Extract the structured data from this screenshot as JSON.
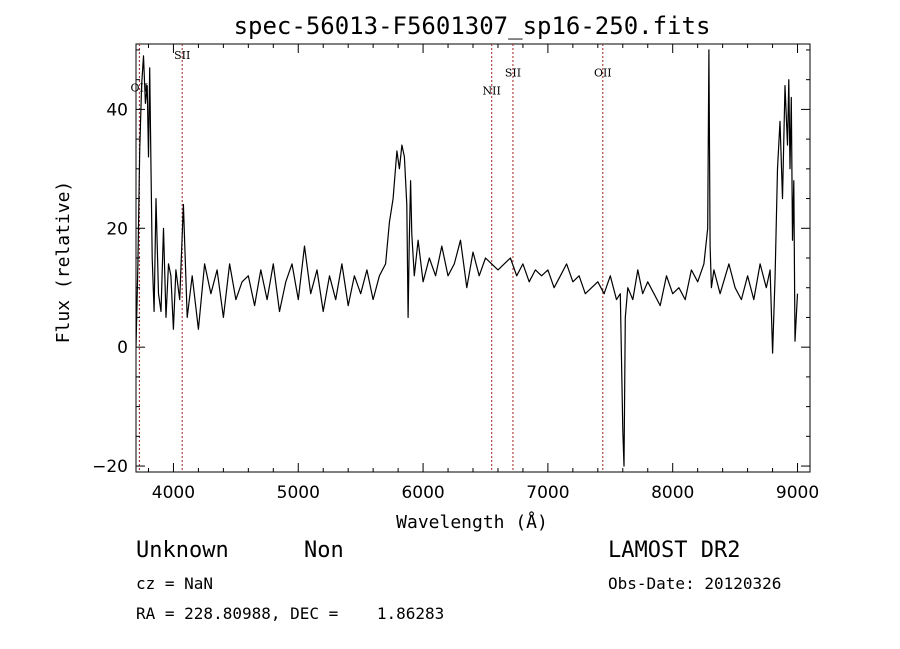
{
  "chart_data": {
    "type": "line",
    "title": "spec-56013-F5601307_sp16-250.fits",
    "xlabel": "Wavelength (Å)",
    "ylabel": "Flux (relative)",
    "xlim": [
      3700,
      9100
    ],
    "ylim": [
      -21,
      51
    ],
    "xticks": [
      4000,
      5000,
      6000,
      7000,
      8000,
      9000
    ],
    "yticks": [
      -20,
      0,
      20,
      40
    ],
    "grid": false,
    "series": [
      {
        "color": "#000000",
        "x": [
          3700,
          3715,
          3730,
          3745,
          3760,
          3775,
          3790,
          3800,
          3810,
          3820,
          3830,
          3845,
          3860,
          3880,
          3900,
          3920,
          3940,
          3960,
          3980,
          4000,
          4020,
          4050,
          4080,
          4110,
          4150,
          4200,
          4250,
          4300,
          4350,
          4400,
          4450,
          4500,
          4550,
          4600,
          4650,
          4700,
          4750,
          4800,
          4850,
          4900,
          4950,
          5000,
          5050,
          5100,
          5150,
          5200,
          5250,
          5300,
          5350,
          5400,
          5450,
          5500,
          5550,
          5600,
          5650,
          5700,
          5730,
          5760,
          5790,
          5810,
          5830,
          5850,
          5870,
          5880,
          5890,
          5900,
          5910,
          5930,
          5960,
          6000,
          6050,
          6100,
          6150,
          6200,
          6250,
          6300,
          6350,
          6400,
          6450,
          6500,
          6550,
          6600,
          6650,
          6700,
          6750,
          6800,
          6850,
          6900,
          6950,
          7000,
          7050,
          7100,
          7150,
          7200,
          7250,
          7300,
          7350,
          7400,
          7450,
          7500,
          7550,
          7580,
          7600,
          7610,
          7620,
          7640,
          7680,
          7720,
          7760,
          7800,
          7850,
          7900,
          7950,
          8000,
          8050,
          8100,
          8150,
          8200,
          8250,
          8280,
          8290,
          8300,
          8310,
          8330,
          8380,
          8450,
          8500,
          8550,
          8600,
          8650,
          8700,
          8750,
          8780,
          8800,
          8820,
          8840,
          8860,
          8880,
          8900,
          8920,
          8930,
          8940,
          8950,
          8960,
          8970,
          8980,
          9000
        ],
        "values": [
          0,
          14,
          33,
          44,
          49,
          41,
          44,
          32,
          47,
          30,
          15,
          6,
          25,
          9,
          6,
          20,
          5,
          14,
          12,
          3,
          13,
          8,
          24,
          5,
          12,
          3,
          14,
          9,
          13,
          5,
          14,
          8,
          11,
          12,
          7,
          13,
          8,
          14,
          6,
          11,
          14,
          8,
          17,
          9,
          13,
          6,
          12,
          8,
          14,
          7,
          12,
          9,
          13,
          8,
          12,
          14,
          21,
          25,
          33,
          30,
          34,
          32,
          24,
          5,
          18,
          28,
          19,
          12,
          18,
          11,
          15,
          12,
          17,
          12,
          14,
          18,
          10,
          16,
          12,
          15,
          14,
          13,
          14,
          15,
          12,
          14,
          11,
          13,
          12,
          13,
          10,
          12,
          14,
          11,
          12,
          9,
          10,
          11,
          9,
          12,
          8,
          9,
          -14,
          -20,
          5,
          10,
          8,
          13,
          9,
          11,
          9,
          7,
          12,
          9,
          10,
          8,
          13,
          11,
          14,
          20,
          50,
          17,
          10,
          13,
          9,
          14,
          10,
          8,
          12,
          8,
          14,
          10,
          13,
          -1,
          12,
          30,
          38,
          25,
          44,
          34,
          45,
          30,
          42,
          18,
          28,
          1,
          9
        ]
      }
    ],
    "line_markers": [
      {
        "label": "OII",
        "x": 3727,
        "label_y": 43
      },
      {
        "label": "SII",
        "x": 4070,
        "label_y": 48.5
      },
      {
        "label": "NII",
        "x": 6550,
        "label_y": 42.5
      },
      {
        "label": "SII",
        "x": 6720,
        "label_y": 45.5
      },
      {
        "label": "OII",
        "x": 7440,
        "label_y": 45.5
      }
    ]
  },
  "info": {
    "class": "Unknown",
    "subclass": "Non",
    "cz": "cz = NaN",
    "coords": "RA = 228.80988, DEC =    1.86283",
    "survey": "LAMOST DR2",
    "obs_date": "Obs-Date: 20120326"
  }
}
